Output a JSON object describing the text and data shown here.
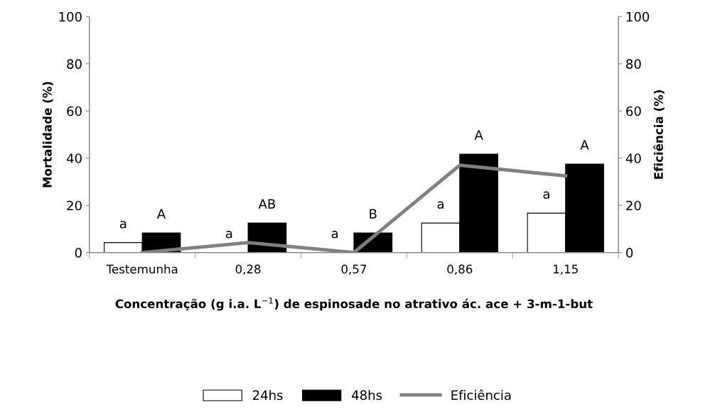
{
  "chart_data": {
    "type": "bar",
    "categories": [
      "Testemunha",
      "0,28",
      "0,57",
      "0,86",
      "1,15"
    ],
    "series": [
      {
        "name": "24hs",
        "color": "#ffffff",
        "values": [
          4.2,
          0,
          0,
          12.5,
          16.7
        ]
      },
      {
        "name": "48hs",
        "color": "#000000",
        "values": [
          8.3,
          12.5,
          8.3,
          41.7,
          37.5
        ]
      },
      {
        "name": "Eficiência",
        "type": "line",
        "axis": "y2",
        "color": "#808080",
        "values": [
          0,
          4.2,
          0,
          37,
          32.5
        ]
      }
    ],
    "xlabel": "Concentração (g i.a. L$^{−1}$) de espinosade no atrativo ác. ace + 3-m-1-but",
    "ylabel": "Mortalidade (%)",
    "y2label": "Eficiência (%)",
    "ylim": [
      0,
      100
    ],
    "yticks": [
      0,
      20,
      40,
      60,
      80,
      100
    ],
    "y2lim": [
      0,
      100
    ],
    "y2ticks": [
      0,
      20,
      40,
      60,
      80,
      100
    ],
    "grid": false,
    "legend": "bottom",
    "marker": "none",
    "annotations": [
      {
        "text": "a",
        "x": "Testemunha",
        "y": 4.2
      },
      {
        "text": "A",
        "x": "Testemunha",
        "y": 8.3
      },
      {
        "text": "a",
        "x": "0,28",
        "y": 0
      },
      {
        "text": "AB",
        "x": "0,28",
        "y": 12.5
      },
      {
        "text": "a",
        "x": "0,57",
        "y": 0
      },
      {
        "text": "B",
        "x": "0,57",
        "y": 8.3
      },
      {
        "text": "a",
        "x": "0,86",
        "y": 12.5
      },
      {
        "text": "A",
        "x": "0,86",
        "y": 41.7
      },
      {
        "text": "a",
        "x": "1,15",
        "y": 16.7
      },
      {
        "text": "A",
        "x": "1,15",
        "y": 37.5
      }
    ]
  }
}
